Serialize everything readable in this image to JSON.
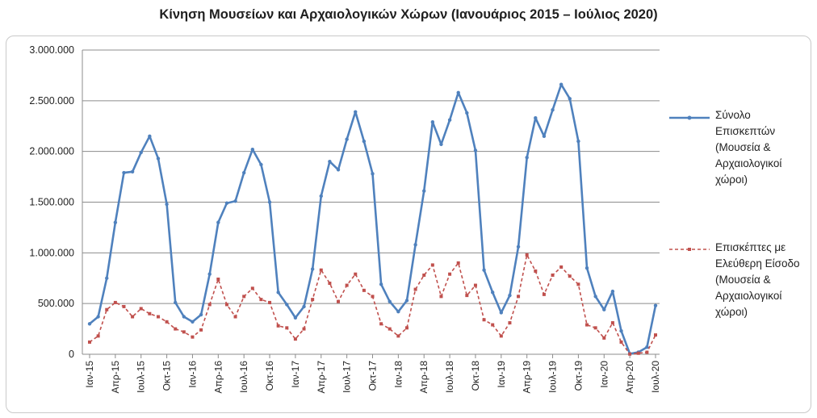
{
  "title": "Κίνηση Μουσείων και Αρχαιολογικών Χώρων (Ιανουάριος 2015 – Ιούλιος 2020)",
  "chart_data": {
    "type": "line",
    "y_ticks": [
      "0",
      "500.000",
      "1.000.000",
      "1.500.000",
      "2.000.000",
      "2.500.000",
      "3.000.000"
    ],
    "ylim": [
      0,
      3000000
    ],
    "grid": true,
    "legend_position": "right",
    "x_tick_labels": [
      "Ιαν-15",
      "Απρ-15",
      "Ιουλ-15",
      "Οκτ-15",
      "Ιαν-16",
      "Απρ-16",
      "Ιουλ-16",
      "Οκτ-16",
      "Ιαν-17",
      "Απρ-17",
      "Ιουλ-17",
      "Οκτ-17",
      "Ιαν-18",
      "Απρ-18",
      "Ιουλ-18",
      "Οκτ-18",
      "Ιαν-19",
      "Απρ-19",
      "Ιουλ-19",
      "Οκτ-19",
      "Ιαν-20",
      "Απρ-20",
      "Ιουλ-20"
    ],
    "x_tick_every": 3,
    "series": [
      {
        "name": "Σύνολο Επισκεπτών (Μουσεία & Αρχαιολογικοί χώροι)",
        "color": "#4f81bd",
        "style": "solid",
        "values": [
          300000,
          370000,
          750000,
          1300000,
          1790000,
          1800000,
          1990000,
          2150000,
          1930000,
          1480000,
          510000,
          370000,
          320000,
          390000,
          790000,
          1300000,
          1490000,
          1510000,
          1790000,
          2020000,
          1870000,
          1500000,
          610000,
          490000,
          360000,
          470000,
          840000,
          1560000,
          1900000,
          1820000,
          2120000,
          2390000,
          2100000,
          1780000,
          690000,
          520000,
          420000,
          530000,
          1080000,
          1610000,
          2290000,
          2070000,
          2310000,
          2580000,
          2380000,
          2010000,
          830000,
          610000,
          410000,
          580000,
          1060000,
          1940000,
          2330000,
          2150000,
          2410000,
          2660000,
          2520000,
          2100000,
          850000,
          570000,
          440000,
          620000,
          230000,
          5000,
          20000,
          70000,
          480000
        ]
      },
      {
        "name": "Επισκέπτες με Ελεύθερη Είσοδο (Μουσεία & Αρχαιολογικοί χώροι)",
        "color": "#c0504d",
        "style": "dashed",
        "values": [
          120000,
          180000,
          440000,
          510000,
          470000,
          370000,
          450000,
          400000,
          370000,
          320000,
          250000,
          220000,
          170000,
          240000,
          490000,
          740000,
          490000,
          370000,
          570000,
          650000,
          540000,
          510000,
          280000,
          260000,
          150000,
          250000,
          540000,
          830000,
          700000,
          520000,
          680000,
          790000,
          630000,
          570000,
          300000,
          250000,
          180000,
          260000,
          640000,
          780000,
          880000,
          570000,
          790000,
          900000,
          580000,
          680000,
          340000,
          290000,
          180000,
          310000,
          570000,
          980000,
          820000,
          590000,
          780000,
          860000,
          770000,
          690000,
          290000,
          260000,
          160000,
          310000,
          120000,
          2000,
          10000,
          20000,
          190000
        ]
      }
    ]
  }
}
